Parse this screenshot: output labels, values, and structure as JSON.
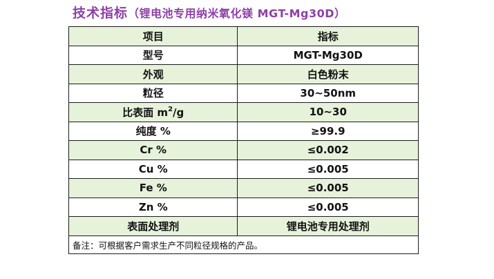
{
  "title": {
    "main": "技术指标",
    "sub": "（锂电池专用纳米氧化镁  MGT-Mg30D）"
  },
  "table": {
    "headers": [
      "项目",
      "指标"
    ],
    "rows": [
      {
        "item": "型号",
        "value": "MGT-Mg30D"
      },
      {
        "item": "外观",
        "value": "白色粉末"
      },
      {
        "item": "粒径",
        "value": "30~50nm"
      },
      {
        "item": "比表面 m2/g",
        "item_prefix": "比表面 m",
        "item_sup": "2",
        "item_suffix": "/g",
        "value": "10~30"
      },
      {
        "item": "纯度 %",
        "value": "≥99.9"
      },
      {
        "item": "Cr %",
        "value": "≤0.002"
      },
      {
        "item": "Cu %",
        "value": "≤0.005"
      },
      {
        "item": "Fe %",
        "value": "≤0.005"
      },
      {
        "item": "Zn %",
        "value": "≤0.005"
      },
      {
        "item": "表面处理剂",
        "value": "锂电池专用处理剂"
      }
    ],
    "note": "备注：可根据客户需求生产不同粒径规格的产品。"
  },
  "colors": {
    "title": "#8e3fa8",
    "alt_row": "#e6f2da",
    "border": "#1a1a1a"
  }
}
